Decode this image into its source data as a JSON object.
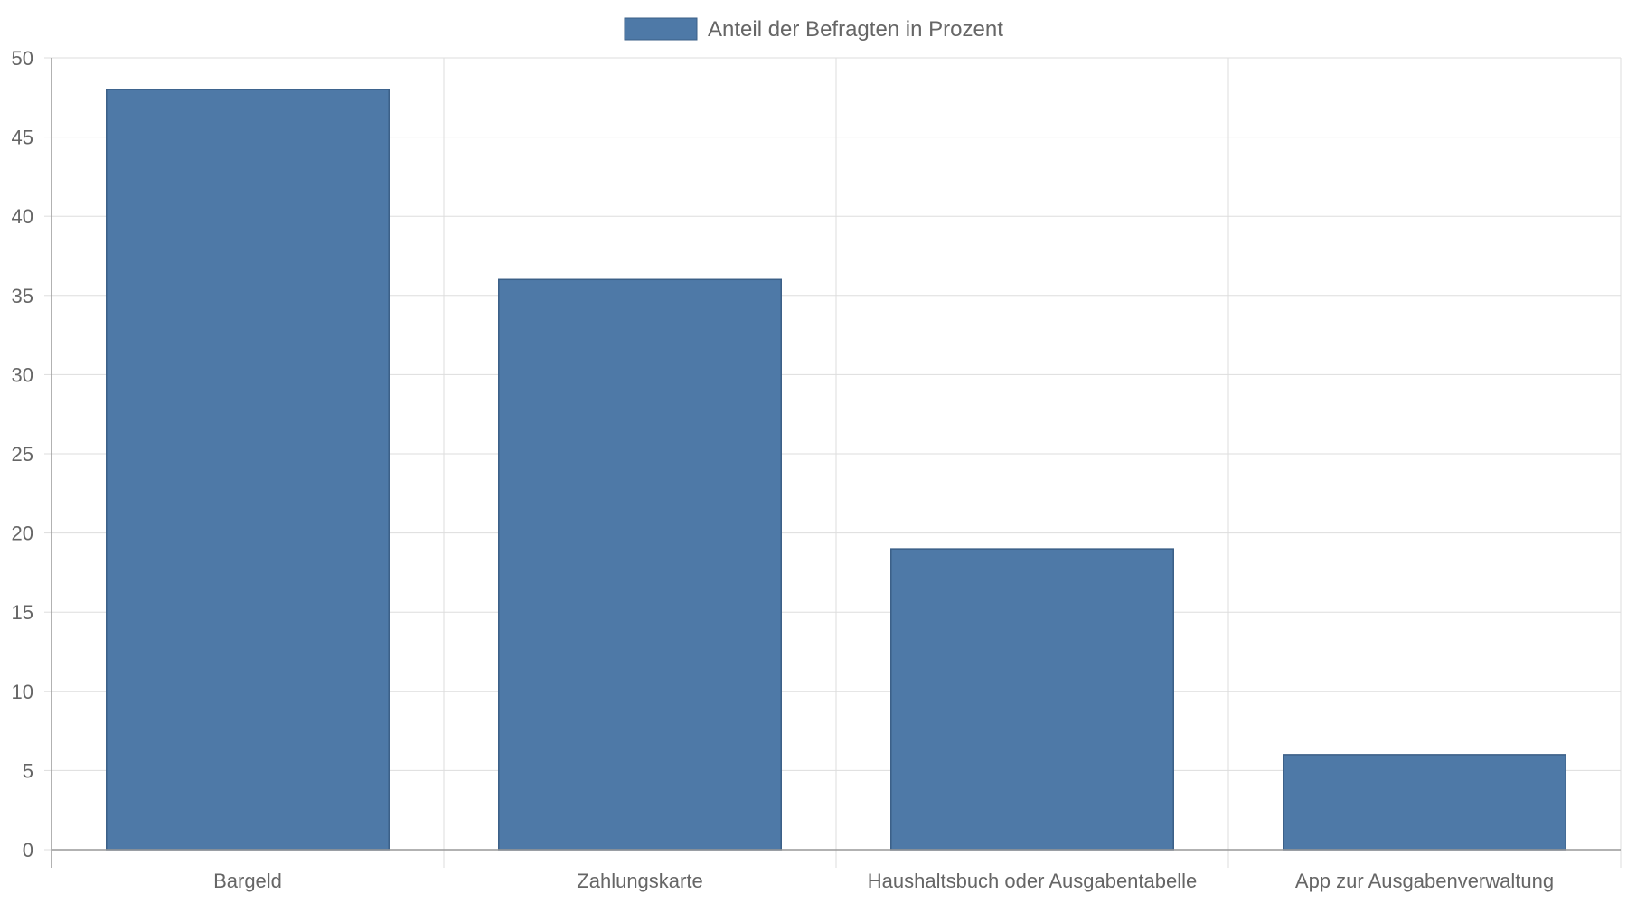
{
  "chart_data": {
    "type": "bar",
    "categories": [
      "Bargeld",
      "Zahlungskarte",
      "Haushaltsbuch oder Ausgabentabelle",
      "App zur Ausgabenverwaltung"
    ],
    "series": [
      {
        "name": "Anteil der Befragten in Prozent",
        "values": [
          48,
          36,
          19,
          6
        ],
        "color": "#4e79a7",
        "border_color": "#3b5f87"
      }
    ],
    "title": "",
    "xlabel": "",
    "ylabel": "",
    "ylim": [
      0,
      50
    ],
    "yticks": [
      0,
      5,
      10,
      15,
      20,
      25,
      30,
      35,
      40,
      45,
      50
    ],
    "grid": true,
    "legend_position": "top-center",
    "grid_color": "#dddddd",
    "axis_color": "#999999",
    "text_color": "#666666"
  }
}
